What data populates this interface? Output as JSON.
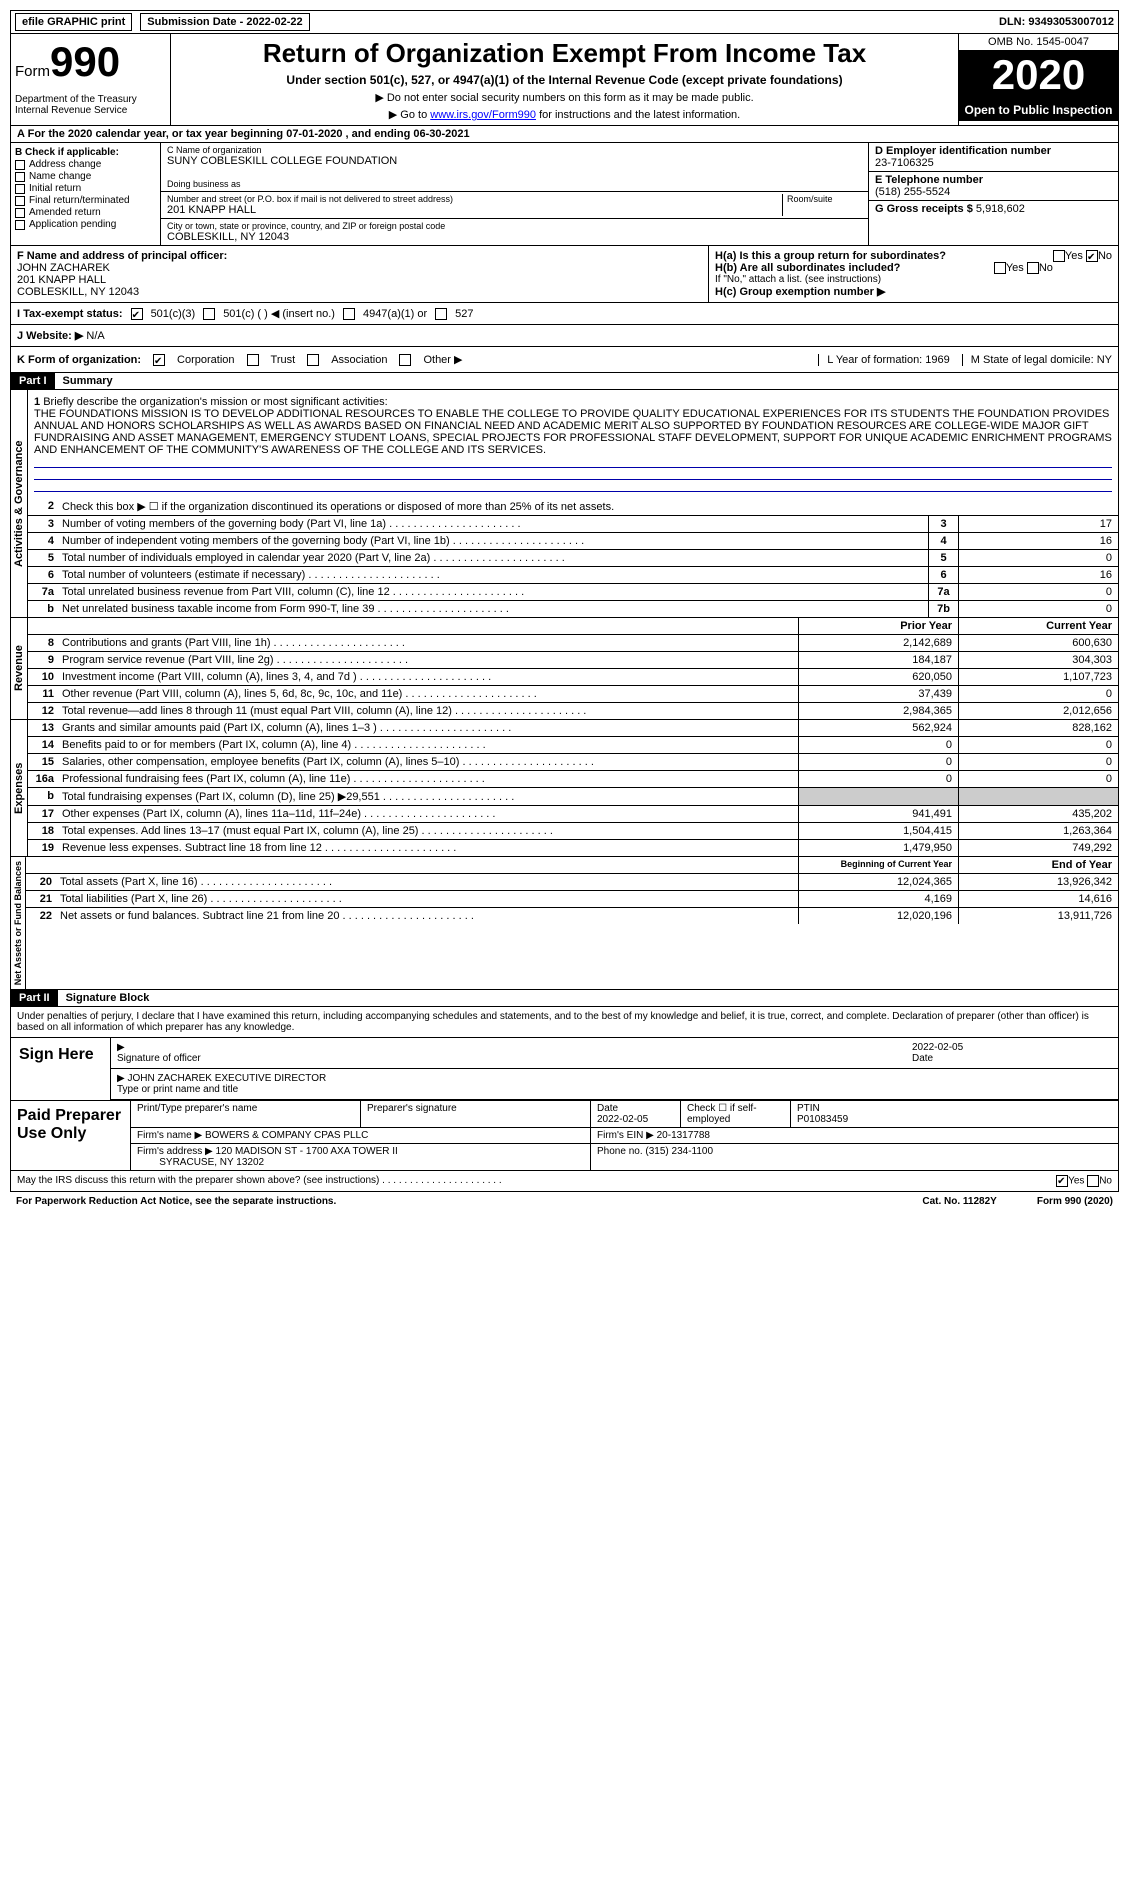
{
  "top": {
    "efile": "efile GRAPHIC print",
    "sub_label": "Submission Date - ",
    "sub_date": "2022-02-22",
    "dln_label": "DLN: ",
    "dln": "93493053007012"
  },
  "header": {
    "form_label": "Form",
    "form_number": "990",
    "dept": "Department of the Treasury\nInternal Revenue Service",
    "title": "Return of Organization Exempt From Income Tax",
    "subtitle": "Under section 501(c), 527, or 4947(a)(1) of the Internal Revenue Code (except private foundations)",
    "note1": "▶ Do not enter social security numbers on this form as it may be made public.",
    "note2_pre": "▶ Go to ",
    "note2_link": "www.irs.gov/Form990",
    "note2_post": " for instructions and the latest information.",
    "omb": "OMB No. 1545-0047",
    "year": "2020",
    "open": "Open to Public Inspection"
  },
  "row_a": "For the 2020 calendar year, or tax year beginning 07-01-2020   , and ending 06-30-2021",
  "box_b": {
    "label": "B Check if applicable:",
    "items": [
      "Address change",
      "Name change",
      "Initial return",
      "Final return/terminated",
      "Amended return",
      "Application pending"
    ]
  },
  "box_c": {
    "name_label": "C Name of organization",
    "name": "SUNY COBLESKILL COLLEGE FOUNDATION",
    "dba_label": "Doing business as",
    "addr_label": "Number and street (or P.O. box if mail is not delivered to street address)",
    "room_label": "Room/suite",
    "addr": "201 KNAPP HALL",
    "city_label": "City or town, state or province, country, and ZIP or foreign postal code",
    "city": "COBLESKILL, NY  12043"
  },
  "box_d": {
    "label": "D Employer identification number",
    "value": "23-7106325"
  },
  "box_e": {
    "label": "E Telephone number",
    "value": "(518) 255-5524"
  },
  "box_g": {
    "label": "G Gross receipts $",
    "value": "5,918,602"
  },
  "box_f": {
    "label": "F  Name and address of principal officer:",
    "name": "JOHN ZACHAREK",
    "addr1": "201 KNAPP HALL",
    "addr2": "COBLESKILL, NY  12043"
  },
  "box_h": {
    "ha": "H(a)  Is this a group return for subordinates?",
    "hb": "H(b)  Are all subordinates included?",
    "hb_note": "If \"No,\" attach a list. (see instructions)",
    "hc": "H(c)  Group exemption number ▶",
    "yes": "Yes",
    "no": "No"
  },
  "row_i": {
    "label": "I  Tax-exempt status:",
    "a": "501(c)(3)",
    "b": "501(c) (  ) ◀ (insert no.)",
    "c": "4947(a)(1) or",
    "d": "527"
  },
  "row_j": {
    "label": "J  Website: ▶",
    "value": "N/A"
  },
  "row_k": {
    "label": "K Form of organization:",
    "a": "Corporation",
    "b": "Trust",
    "c": "Association",
    "d": "Other ▶",
    "l": "L Year of formation: 1969",
    "m": "M State of legal domicile: NY"
  },
  "part1": {
    "hdr": "Part I",
    "title": "Summary",
    "vlabel1": "Activities & Governance",
    "vlabel2": "Revenue",
    "vlabel3": "Expenses",
    "vlabel4": "Net Assets or Fund Balances",
    "q1": "Briefly describe the organization's mission or most significant activities:",
    "mission": "THE FOUNDATIONS MISSION IS TO DEVELOP ADDITIONAL RESOURCES TO ENABLE THE COLLEGE TO PROVIDE QUALITY EDUCATIONAL EXPERIENCES FOR ITS STUDENTS THE FOUNDATION PROVIDES ANNUAL AND HONORS SCHOLARSHIPS AS WELL AS AWARDS BASED ON FINANCIAL NEED AND ACADEMIC MERIT ALSO SUPPORTED BY FOUNDATION RESOURCES ARE COLLEGE-WIDE MAJOR GIFT FUNDRAISING AND ASSET MANAGEMENT, EMERGENCY STUDENT LOANS, SPECIAL PROJECTS FOR PROFESSIONAL STAFF DEVELOPMENT, SUPPORT FOR UNIQUE ACADEMIC ENRICHMENT PROGRAMS AND ENHANCEMENT OF THE COMMUNITY'S AWARENESS OF THE COLLEGE AND ITS SERVICES.",
    "q2": "Check this box ▶ ☐  if the organization discontinued its operations or disposed of more than 25% of its net assets.",
    "lines_gov": [
      {
        "n": "3",
        "t": "Number of voting members of the governing body (Part VI, line 1a)",
        "bn": "3",
        "v": "17"
      },
      {
        "n": "4",
        "t": "Number of independent voting members of the governing body (Part VI, line 1b)",
        "bn": "4",
        "v": "16"
      },
      {
        "n": "5",
        "t": "Total number of individuals employed in calendar year 2020 (Part V, line 2a)",
        "bn": "5",
        "v": "0"
      },
      {
        "n": "6",
        "t": "Total number of volunteers (estimate if necessary)",
        "bn": "6",
        "v": "16"
      },
      {
        "n": "7a",
        "t": "Total unrelated business revenue from Part VIII, column (C), line 12",
        "bn": "7a",
        "v": "0"
      },
      {
        "n": "b",
        "t": "Net unrelated business taxable income from Form 990-T, line 39",
        "bn": "7b",
        "v": "0"
      }
    ],
    "prior": "Prior Year",
    "current": "Current Year",
    "lines_rev": [
      {
        "n": "8",
        "t": "Contributions and grants (Part VIII, line 1h)",
        "p": "2,142,689",
        "c": "600,630"
      },
      {
        "n": "9",
        "t": "Program service revenue (Part VIII, line 2g)",
        "p": "184,187",
        "c": "304,303"
      },
      {
        "n": "10",
        "t": "Investment income (Part VIII, column (A), lines 3, 4, and 7d )",
        "p": "620,050",
        "c": "1,107,723"
      },
      {
        "n": "11",
        "t": "Other revenue (Part VIII, column (A), lines 5, 6d, 8c, 9c, 10c, and 11e)",
        "p": "37,439",
        "c": "0"
      },
      {
        "n": "12",
        "t": "Total revenue—add lines 8 through 11 (must equal Part VIII, column (A), line 12)",
        "p": "2,984,365",
        "c": "2,012,656"
      }
    ],
    "lines_exp": [
      {
        "n": "13",
        "t": "Grants and similar amounts paid (Part IX, column (A), lines 1–3 )",
        "p": "562,924",
        "c": "828,162"
      },
      {
        "n": "14",
        "t": "Benefits paid to or for members (Part IX, column (A), line 4)",
        "p": "0",
        "c": "0"
      },
      {
        "n": "15",
        "t": "Salaries, other compensation, employee benefits (Part IX, column (A), lines 5–10)",
        "p": "0",
        "c": "0"
      },
      {
        "n": "16a",
        "t": "Professional fundraising fees (Part IX, column (A), line 11e)",
        "p": "0",
        "c": "0"
      },
      {
        "n": "b",
        "t": "Total fundraising expenses (Part IX, column (D), line 25) ▶29,551",
        "p": "",
        "c": "",
        "gray": true
      },
      {
        "n": "17",
        "t": "Other expenses (Part IX, column (A), lines 11a–11d, 11f–24e)",
        "p": "941,491",
        "c": "435,202"
      },
      {
        "n": "18",
        "t": "Total expenses. Add lines 13–17 (must equal Part IX, column (A), line 25)",
        "p": "1,504,415",
        "c": "1,263,364"
      },
      {
        "n": "19",
        "t": "Revenue less expenses. Subtract line 18 from line 12",
        "p": "1,479,950",
        "c": "749,292"
      }
    ],
    "begin": "Beginning of Current Year",
    "end": "End of Year",
    "lines_net": [
      {
        "n": "20",
        "t": "Total assets (Part X, line 16)",
        "p": "12,024,365",
        "c": "13,926,342"
      },
      {
        "n": "21",
        "t": "Total liabilities (Part X, line 26)",
        "p": "4,169",
        "c": "14,616"
      },
      {
        "n": "22",
        "t": "Net assets or fund balances. Subtract line 21 from line 20",
        "p": "12,020,196",
        "c": "13,911,726"
      }
    ]
  },
  "part2": {
    "hdr": "Part II",
    "title": "Signature Block",
    "decl": "Under penalties of perjury, I declare that I have examined this return, including accompanying schedules and statements, and to the best of my knowledge and belief, it is true, correct, and complete. Declaration of preparer (other than officer) is based on all information of which preparer has any knowledge.",
    "sign_here": "Sign Here",
    "sig_officer": "Signature of officer",
    "date": "Date",
    "sig_date": "2022-02-05",
    "name_title": "JOHN ZACHAREK  EXECUTIVE DIRECTOR",
    "name_label": "Type or print name and title",
    "paid": "Paid Preparer Use Only",
    "pt_name": "Print/Type preparer's name",
    "pt_sig": "Preparer's signature",
    "pt_date_l": "Date",
    "pt_date": "2022-02-05",
    "pt_check": "Check ☐ if self-employed",
    "ptin_l": "PTIN",
    "ptin": "P01083459",
    "firm_name_l": "Firm's name    ▶",
    "firm_name": "BOWERS & COMPANY CPAS PLLC",
    "firm_ein_l": "Firm's EIN ▶",
    "firm_ein": "20-1317788",
    "firm_addr_l": "Firm's address ▶",
    "firm_addr1": "120 MADISON ST - 1700 AXA TOWER II",
    "firm_addr2": "SYRACUSE, NY  13202",
    "phone_l": "Phone no.",
    "phone": "(315) 234-1100"
  },
  "footer": {
    "q": "May the IRS discuss this return with the preparer shown above? (see instructions)",
    "yes": "Yes",
    "no": "No",
    "pra": "For Paperwork Reduction Act Notice, see the separate instructions.",
    "cat": "Cat. No. 11282Y",
    "form": "Form 990 (2020)"
  }
}
